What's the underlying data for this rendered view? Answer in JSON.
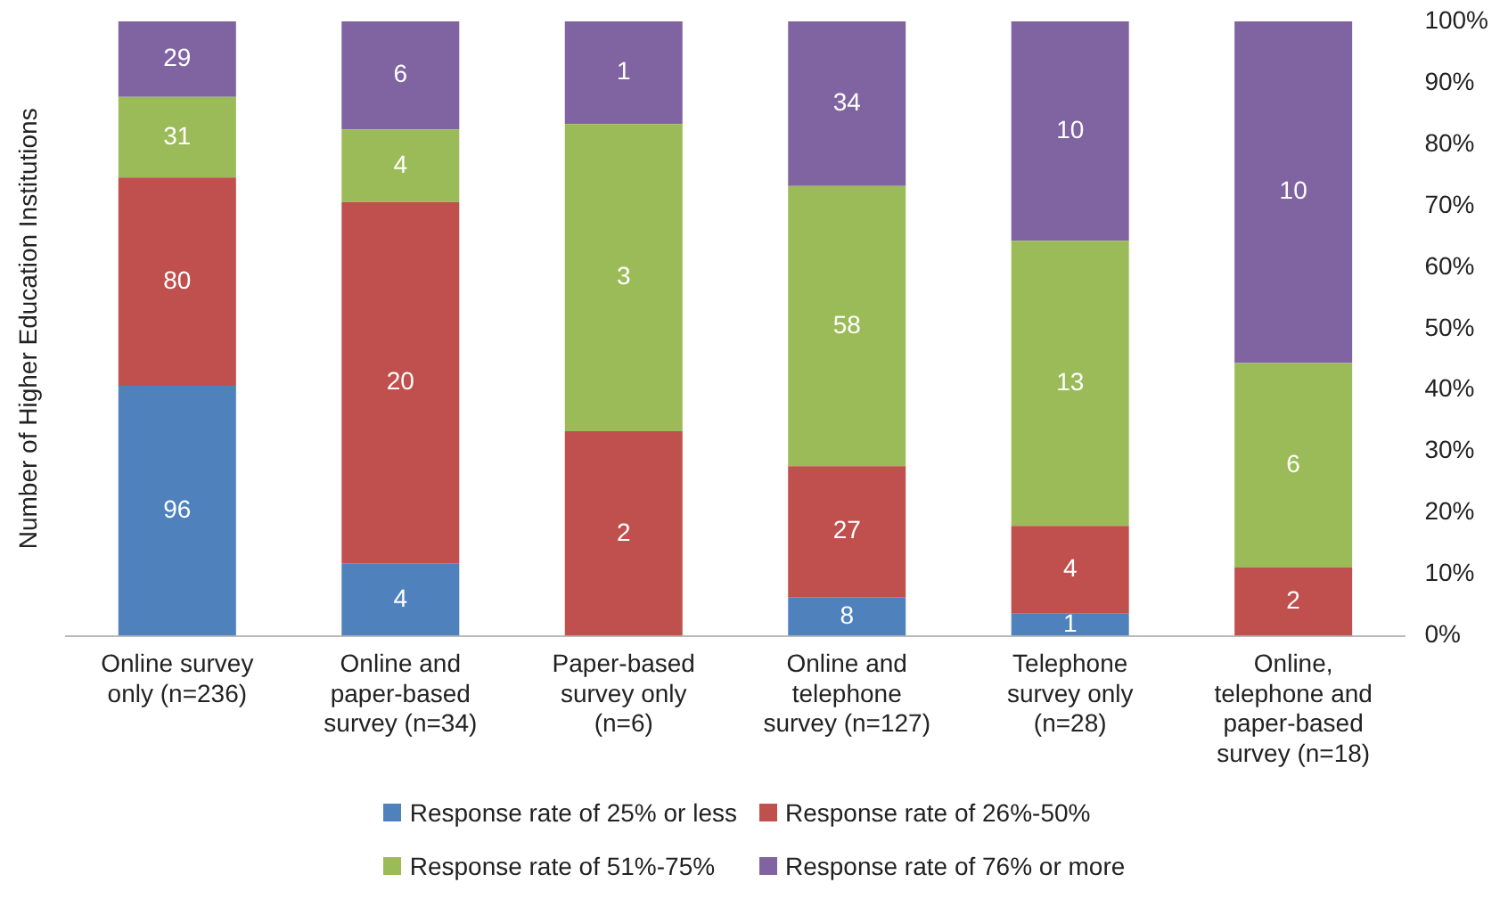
{
  "chart_data": {
    "type": "bar",
    "stacked": true,
    "ylabel": "Number of Higher Education Institutions",
    "categories": [
      "Online survey only (n=236)",
      "Online and paper-based survey (n=34)",
      "Paper-based survey only (n=6)",
      "Online and telephone survey (n=127)",
      "Telephone survey only (n=28)",
      "Online, telephone and paper-based survey (n=18)"
    ],
    "series": [
      {
        "name": "Response rate of 25% or less",
        "color": "#4f81bd",
        "values": [
          40.7,
          11.8,
          0,
          6.3,
          3.6,
          0
        ]
      },
      {
        "name": "Response rate of 26%-50%",
        "color": "#c0504d",
        "values": [
          33.9,
          58.8,
          33.3,
          21.3,
          14.3,
          11.1
        ]
      },
      {
        "name": "Response rate of 51%-75%",
        "color": "#9bbb59",
        "values": [
          13.1,
          11.8,
          50,
          45.6,
          46.4,
          33.3
        ]
      },
      {
        "name": "Response rate of 76% or more",
        "color": "#8064a2",
        "values": [
          12.3,
          17.6,
          16.7,
          26.8,
          35.7,
          55.6
        ]
      }
    ],
    "annotations": [
      "96",
      "80",
      "31",
      "29",
      "4",
      "20",
      "4",
      "6",
      "2",
      "3",
      "1",
      "8",
      "27",
      "58",
      "34",
      "1",
      "4",
      "13",
      "10",
      "2",
      "6",
      "10"
    ],
    "ylim": [
      0,
      100
    ],
    "yticks": [
      {
        "value": 0,
        "label": "0%"
      },
      {
        "value": 10,
        "label": "10%"
      },
      {
        "value": 20,
        "label": "20%"
      },
      {
        "value": 30,
        "label": "30%"
      },
      {
        "value": 40,
        "label": "40%"
      },
      {
        "value": 50,
        "label": "50%"
      },
      {
        "value": 60,
        "label": "60%"
      },
      {
        "value": 70,
        "label": "70%"
      },
      {
        "value": 80,
        "label": "80%"
      },
      {
        "value": 90,
        "label": "90%"
      },
      {
        "value": 100,
        "label": "100%"
      }
    ],
    "legend": "bottom"
  }
}
